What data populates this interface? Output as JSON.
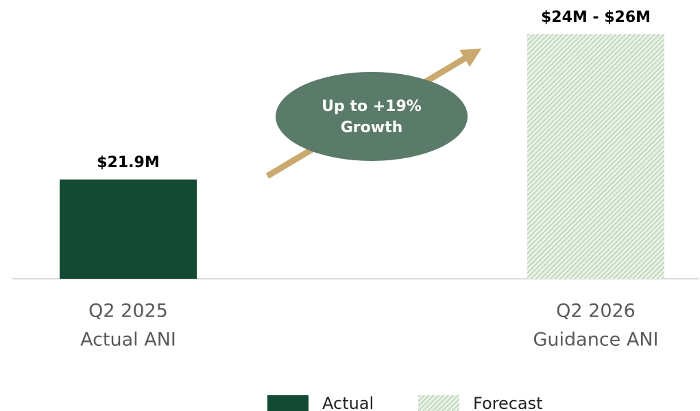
{
  "chart_data": {
    "type": "bar",
    "categories": [
      [
        "Q2 2025",
        "Actual ANI"
      ],
      [
        "Q2 2026",
        "Guidance ANI"
      ]
    ],
    "series": [
      {
        "name": "Actual",
        "color": "#134a34",
        "pattern": "solid",
        "values": [
          21.9,
          null
        ],
        "value_labels": [
          "$21.9M",
          null
        ]
      },
      {
        "name": "Forecast",
        "color": "#a9c9a4",
        "pattern": "hatch",
        "values": [
          null,
          26
        ],
        "low": [
          null,
          24
        ],
        "value_labels": [
          null,
          "$24M - $26M"
        ]
      }
    ],
    "ylim": [
      19.1,
      26
    ],
    "annotation": {
      "lines": [
        "Up to +19%",
        "Growth"
      ],
      "color": "#5b7b6a",
      "arrow_color": "#c9a96e"
    },
    "legend": "bottom"
  }
}
